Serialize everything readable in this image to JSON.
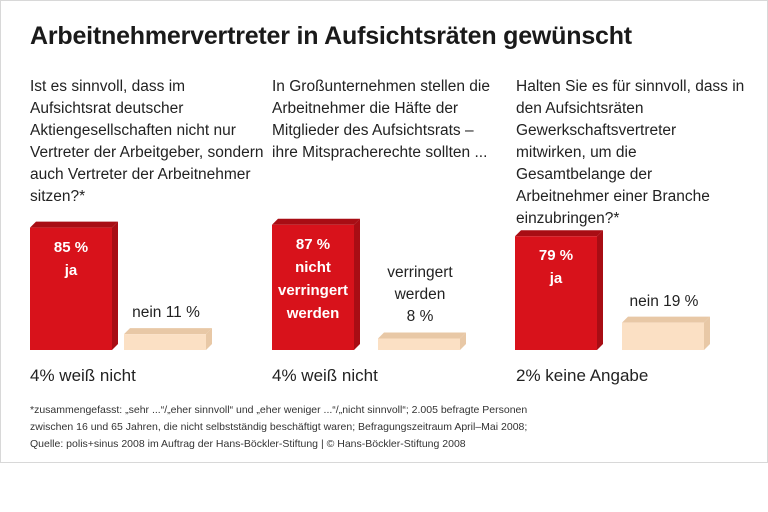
{
  "title": "Arbeitnehmervertreter in Aufsichtsräten gewünscht",
  "colors": {
    "main_bar": "#d8121b",
    "main_bar_side": "#a80d14",
    "other_bar": "#fbe0c4",
    "other_bar_side": "#e8c8a6"
  },
  "chart_data": [
    {
      "type": "bar",
      "question": "Ist es sinnvoll, dass im Aufsichtsrat deutscher Aktiengesellschaften nicht nur Vertreter der Arbeitgeber, sondern auch Vertreter der Arbeitnehmer sitzen?*",
      "categories": [
        "ja",
        "nein"
      ],
      "values": [
        85,
        11
      ],
      "main_label": [
        "85 %",
        "ja"
      ],
      "other_label": [
        "nein 11 %"
      ],
      "remainder": "4% weiß nicht"
    },
    {
      "type": "bar",
      "question": "In Großunternehmen stellen die Arbeitnehmer die Häfte der Mitglieder des Aufsichtsrats – ihre Mitspracherechte sollten ...",
      "categories": [
        "nicht verringert werden",
        "verringert werden"
      ],
      "values": [
        87,
        8
      ],
      "main_label": [
        "87 %",
        "nicht",
        "verringert",
        "werden"
      ],
      "other_label": [
        "verringert",
        "werden",
        "8 %"
      ],
      "remainder": "4% weiß nicht"
    },
    {
      "type": "bar",
      "question": "Halten Sie es für sinnvoll, dass in den Aufsichtsräten Gewerkschaftsvertreter mitwirken, um die Gesamtbelange der Arbeitnehmer einer Branche einzubringen?*",
      "categories": [
        "ja",
        "nein"
      ],
      "values": [
        79,
        19
      ],
      "main_label": [
        "79 %",
        "ja"
      ],
      "other_label": [
        "nein 19 %"
      ],
      "remainder": "2% keine Angabe"
    }
  ],
  "footnote": [
    "*zusammengefasst: „sehr ...“/„eher sinnvoll“ und „eher weniger ...“/„nicht sinnvoll“; 2.005 befragte Personen",
    "zwischen 16 und 65 Jahren, die nicht selbstständig beschäftigt waren; Befragungszeitraum April–Mai 2008;",
    "Quelle: polis+sinus 2008 im Auftrag der Hans-Böckler-Stiftung | © Hans-Böckler-Stiftung 2008"
  ]
}
